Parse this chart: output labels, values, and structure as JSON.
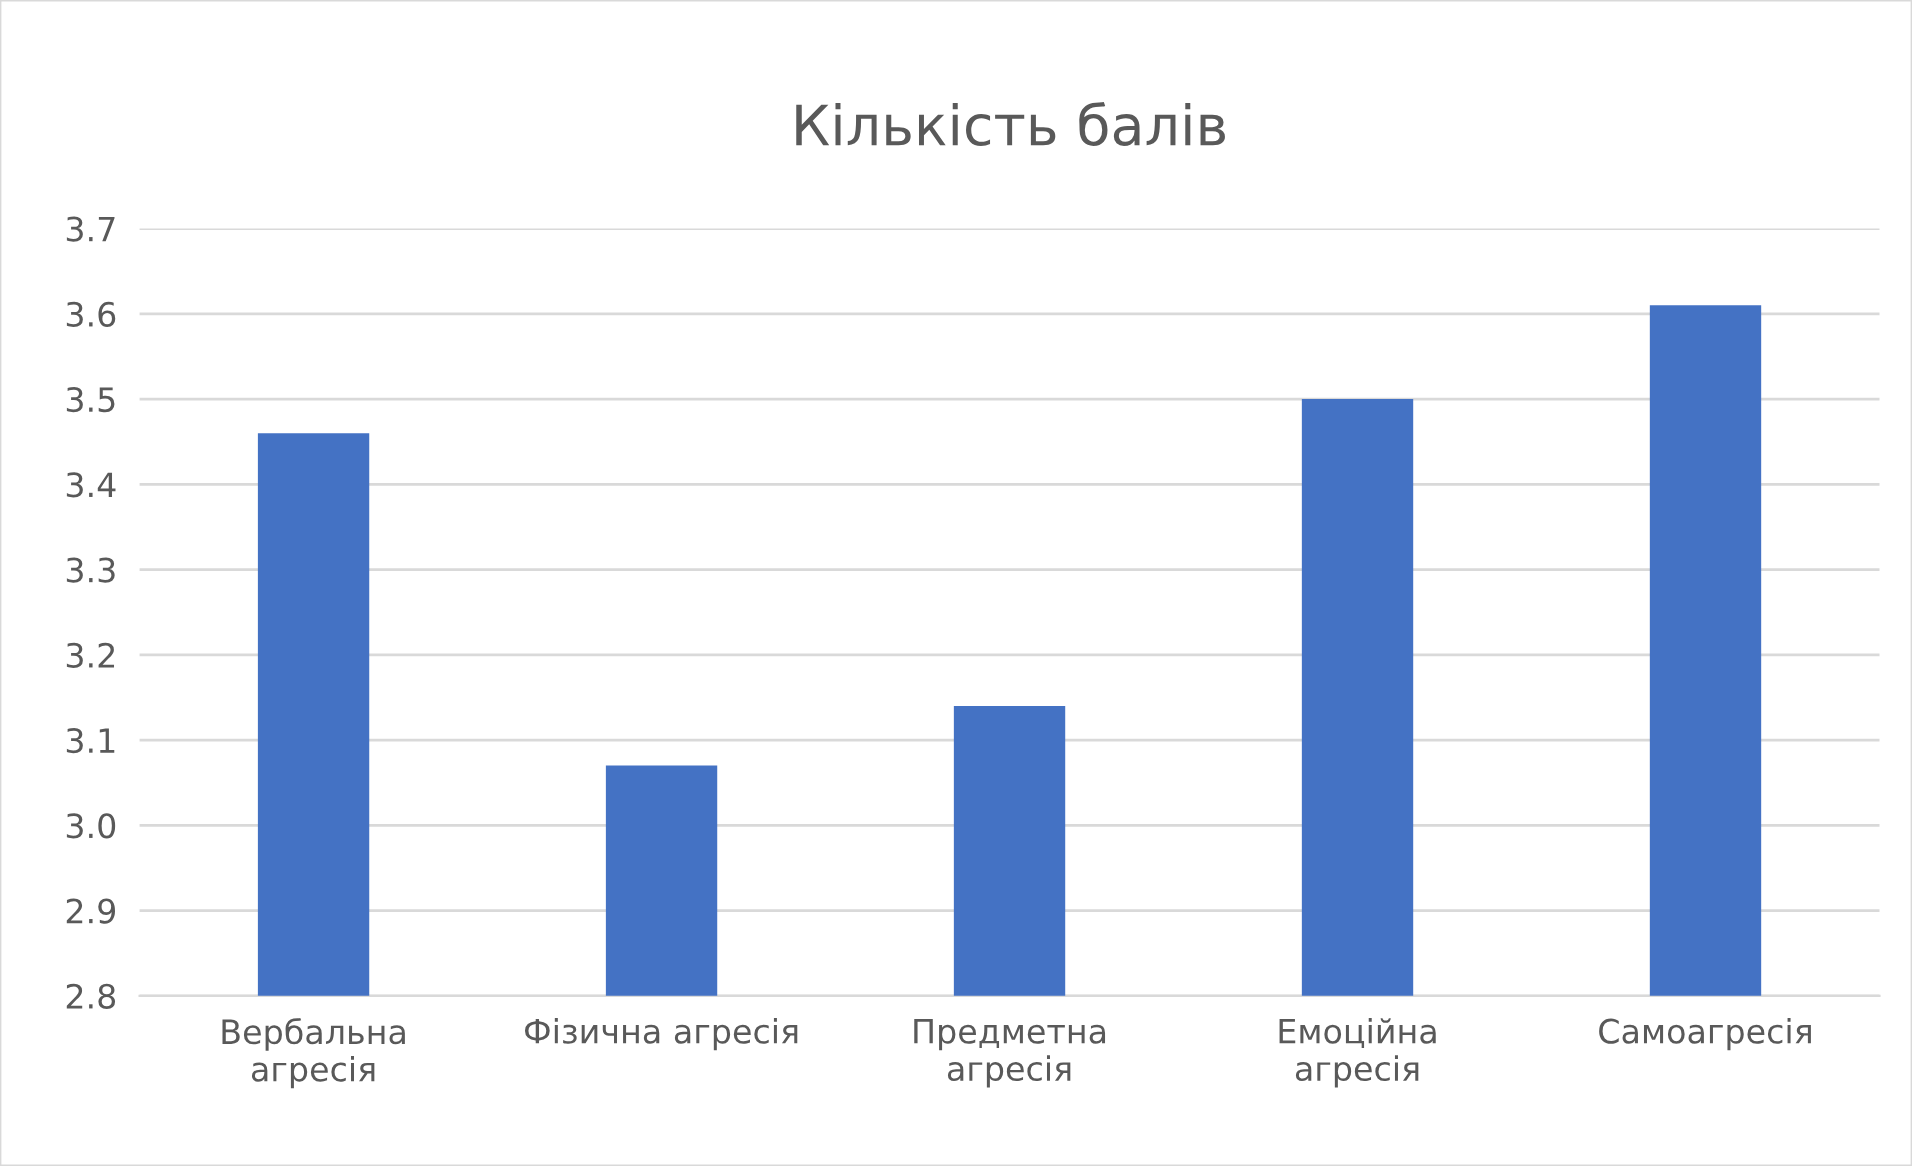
{
  "chart_data": {
    "type": "bar",
    "title": "Кількість балів",
    "categories": [
      "Вербальна\nагресія",
      "Фізична агресія",
      "Предметна\nагресія",
      "Емоційна\nагресія",
      "Самоагресія"
    ],
    "values": [
      3.46,
      3.07,
      3.14,
      3.5,
      3.61
    ],
    "color": "#4472c4",
    "ylim": [
      2.8,
      3.7
    ],
    "yticks": [
      {
        "value": 2.8,
        "label": "2.8"
      },
      {
        "value": 2.9,
        "label": "2.9"
      },
      {
        "value": 3.0,
        "label": "3.0"
      },
      {
        "value": 3.1,
        "label": "3.1"
      },
      {
        "value": 3.2,
        "label": "3.2"
      },
      {
        "value": 3.3,
        "label": "3.3"
      },
      {
        "value": 3.4,
        "label": "3.4"
      },
      {
        "value": 3.5,
        "label": "3.5"
      },
      {
        "value": 3.6,
        "label": "3.6"
      },
      {
        "value": 3.7,
        "label": "3.7"
      }
    ],
    "grid": "y"
  }
}
